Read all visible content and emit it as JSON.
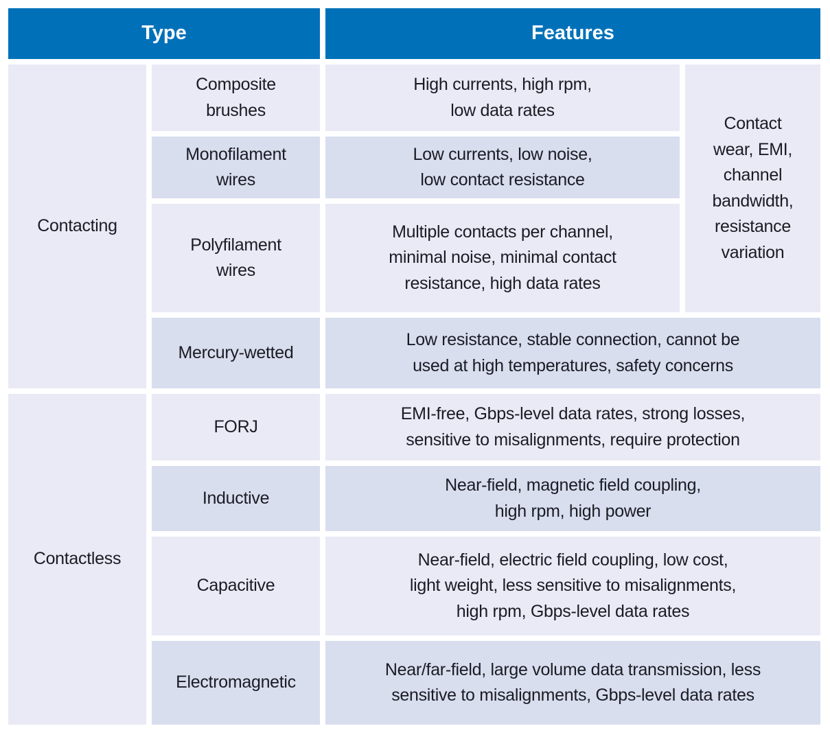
{
  "header": {
    "type": "Type",
    "features": "Features"
  },
  "contacting": {
    "label": "Contacting",
    "shared_drawbacks": "Contact\nwear, EMI,\nchannel\nbandwidth,\nresistance\nvariation",
    "rows": [
      {
        "type": "Composite\nbrushes",
        "features": "High currents, high rpm,\nlow data rates"
      },
      {
        "type": "Monofilament\nwires",
        "features": "Low currents, low noise,\nlow contact resistance"
      },
      {
        "type": "Polyfilament\nwires",
        "features": "Multiple contacts per channel,\nminimal noise, minimal contact\nresistance, high data rates"
      },
      {
        "type": "Mercury-wetted",
        "features": "Low resistance, stable connection, cannot be\nused at high temperatures, safety concerns"
      }
    ]
  },
  "contactless": {
    "label": "Contactless",
    "rows": [
      {
        "type": "FORJ",
        "features": "EMI-free, Gbps-level data rates, strong losses,\nsensitive to misalignments, require protection"
      },
      {
        "type": "Inductive",
        "features": "Near-field, magnetic field coupling,\nhigh rpm, high power"
      },
      {
        "type": "Capacitive",
        "features": "Near-field, electric field coupling, low cost,\nlight weight, less sensitive to misalignments,\nhigh rpm, Gbps-level data rates"
      },
      {
        "type": "Electromagnetic",
        "features": "Near/far-field, large volume data transmission, less\nsensitive to misalignments, Gbps-level data rates"
      }
    ]
  },
  "colors": {
    "header_bg": "#0071b9",
    "header_text": "#ffffff",
    "row_light": "#e9eaf5",
    "row_dark": "#d8deee",
    "text": "#1b1b24",
    "page_bg": "#ffffff"
  }
}
